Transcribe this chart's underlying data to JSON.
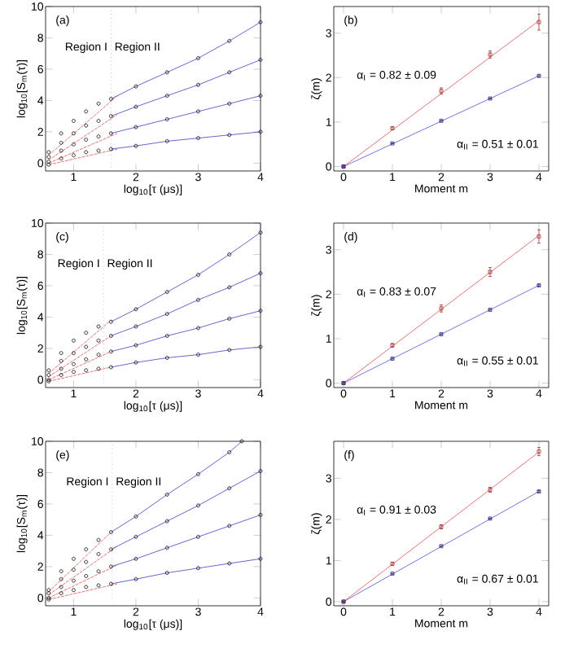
{
  "chart_data": [
    {
      "type": "scatter",
      "xlabel": "log$_{10}$[τ (μs)]",
      "ylabel": "log$_{10}$[S$_{m}$(τ)]",
      "xlim": [
        0.55,
        4
      ],
      "ylim": [
        -0.5,
        10
      ],
      "xticks": [
        1,
        2,
        3,
        4
      ],
      "yticks": [
        0,
        2,
        4,
        6,
        8,
        10
      ],
      "marker": "circle",
      "x": [
        0.6,
        0.8,
        1.0,
        1.2,
        1.4,
        1.6,
        2,
        2.5,
        3,
        3.5,
        4
      ],
      "ref_lines": [
        {
          "axis": "x",
          "value": 1.6,
          "color": "#999999",
          "line_style": "dotted"
        }
      ],
      "annotations": [
        "(a)",
        "Region I",
        "Region II"
      ],
      "series": [
        {
          "type": "line",
          "marker": "none",
          "line_style": "dashed",
          "color": "#e05050",
          "x": [
            0.6,
            1.7
          ],
          "values": [
            0.5,
            4.3
          ]
        },
        {
          "type": "line",
          "marker": "none",
          "line_style": "dashed",
          "color": "#e05050",
          "x": [
            0.6,
            1.7
          ],
          "values": [
            0.2,
            3.1
          ]
        },
        {
          "type": "line",
          "marker": "none",
          "line_style": "dashed",
          "color": "#e05050",
          "x": [
            0.6,
            1.7
          ],
          "values": [
            0.0,
            1.9
          ]
        },
        {
          "type": "line",
          "marker": "none",
          "line_style": "dashed",
          "color": "#e05050",
          "x": [
            0.6,
            1.7
          ],
          "values": [
            -0.1,
            0.9
          ]
        },
        {
          "color": "#000000",
          "values": [
            0.7,
            1.9,
            2.7,
            3.3,
            3.8,
            4.1,
            4.9,
            5.8,
            6.7,
            7.8,
            9.0
          ]
        },
        {
          "color": "#000000",
          "values": [
            0.4,
            1.3,
            1.9,
            2.4,
            2.7,
            3.0,
            3.6,
            4.3,
            5.0,
            5.8,
            6.6
          ]
        },
        {
          "color": "#000000",
          "values": [
            0.1,
            0.8,
            1.2,
            1.5,
            1.7,
            1.9,
            2.3,
            2.8,
            3.3,
            3.8,
            4.3
          ]
        },
        {
          "color": "#000000",
          "values": [
            -0.1,
            0.3,
            0.5,
            0.7,
            0.8,
            0.9,
            1.1,
            1.4,
            1.6,
            1.8,
            2.0
          ]
        },
        {
          "type": "line",
          "marker": "none",
          "color": "#4040c0",
          "x": [
            1.6,
            2,
            2.5,
            3,
            3.5,
            4
          ],
          "values": [
            4.1,
            4.9,
            5.8,
            6.7,
            7.8,
            9.0
          ]
        },
        {
          "type": "line",
          "marker": "none",
          "color": "#4040c0",
          "x": [
            1.6,
            2,
            2.5,
            3,
            3.5,
            4
          ],
          "values": [
            3.0,
            3.6,
            4.3,
            5.0,
            5.8,
            6.6
          ]
        },
        {
          "type": "line",
          "marker": "none",
          "color": "#4040c0",
          "x": [
            1.6,
            2,
            2.5,
            3,
            3.5,
            4
          ],
          "values": [
            1.9,
            2.3,
            2.8,
            3.3,
            3.8,
            4.3
          ]
        },
        {
          "type": "line",
          "marker": "none",
          "color": "#4040c0",
          "x": [
            1.6,
            2,
            2.5,
            3,
            3.5,
            4
          ],
          "values": [
            0.9,
            1.1,
            1.4,
            1.6,
            1.8,
            2.0
          ]
        }
      ]
    },
    {
      "type": "scatter",
      "xlabel": "Moment m",
      "ylabel": "ζ(m)",
      "xlim": [
        -0.2,
        4.2
      ],
      "ylim": [
        -0.1,
        3.6
      ],
      "xticks": [
        0,
        1,
        2,
        3,
        4
      ],
      "yticks": [
        0,
        1,
        2,
        3
      ],
      "marker": "square",
      "x": [
        0,
        1,
        2,
        3,
        4
      ],
      "annotations": [
        "(b)",
        "α$_{I}$ = 0.82 ± 0.09",
        "α$_{II}$ = 0.51 ± 0.01"
      ],
      "series": [
        {
          "type": "line",
          "marker": "none",
          "color": "#e05050",
          "x": [
            0,
            4
          ],
          "values": [
            0,
            3.28
          ]
        },
        {
          "type": "line",
          "marker": "none",
          "color": "#5050d0",
          "x": [
            0,
            4
          ],
          "values": [
            0,
            2.04
          ]
        },
        {
          "color": "#a03030",
          "values": [
            0,
            0.86,
            1.7,
            2.52,
            3.25
          ],
          "errors": [
            0.02,
            0.03,
            0.07,
            0.08,
            0.18
          ]
        },
        {
          "color": "#303080",
          "values": [
            0,
            0.52,
            1.03,
            1.53,
            2.04
          ],
          "errors": [
            0.01,
            0.01,
            0.01,
            0.01,
            0.02
          ]
        }
      ]
    },
    {
      "type": "scatter",
      "xlabel": "log$_{10}$[τ (μs)]",
      "ylabel": "log$_{10}$[S$_{m}$(τ)]",
      "xlim": [
        0.55,
        4
      ],
      "ylim": [
        -0.5,
        10
      ],
      "xticks": [
        1,
        2,
        3,
        4
      ],
      "yticks": [
        0,
        2,
        4,
        6,
        8,
        10
      ],
      "marker": "circle",
      "x": [
        0.6,
        0.8,
        1.0,
        1.2,
        1.4,
        1.6,
        2,
        2.5,
        3,
        3.5,
        4
      ],
      "ref_lines": [
        {
          "axis": "x",
          "value": 1.48,
          "color": "#999999",
          "line_style": "dotted"
        }
      ],
      "annotations": [
        "(c)",
        "Region I",
        "Region II"
      ],
      "series": [
        {
          "type": "line",
          "marker": "none",
          "line_style": "dashed",
          "color": "#e05050",
          "x": [
            0.6,
            1.6
          ],
          "values": [
            0.4,
            3.8
          ]
        },
        {
          "type": "line",
          "marker": "none",
          "line_style": "dashed",
          "color": "#e05050",
          "x": [
            0.6,
            1.6
          ],
          "values": [
            0.2,
            2.8
          ]
        },
        {
          "type": "line",
          "marker": "none",
          "line_style": "dashed",
          "color": "#e05050",
          "x": [
            0.6,
            1.6
          ],
          "values": [
            0.0,
            1.8
          ]
        },
        {
          "type": "line",
          "marker": "none",
          "line_style": "dashed",
          "color": "#e05050",
          "x": [
            0.6,
            1.6
          ],
          "values": [
            -0.1,
            0.8
          ]
        },
        {
          "color": "#000000",
          "values": [
            0.6,
            1.7,
            2.5,
            3.0,
            3.4,
            3.7,
            4.5,
            5.6,
            6.7,
            8.0,
            9.4
          ]
        },
        {
          "color": "#000000",
          "values": [
            0.3,
            1.2,
            1.7,
            2.1,
            2.5,
            2.8,
            3.4,
            4.2,
            5.1,
            5.9,
            6.8
          ]
        },
        {
          "color": "#000000",
          "values": [
            0.0,
            0.7,
            1.0,
            1.3,
            1.6,
            1.8,
            2.2,
            2.8,
            3.3,
            3.9,
            4.4
          ]
        },
        {
          "color": "#000000",
          "values": [
            -0.1,
            0.3,
            0.5,
            0.6,
            0.7,
            0.8,
            1.1,
            1.4,
            1.6,
            1.9,
            2.1
          ]
        },
        {
          "type": "line",
          "marker": "none",
          "color": "#4040c0",
          "x": [
            1.6,
            2,
            2.5,
            3,
            3.5,
            4
          ],
          "values": [
            3.7,
            4.5,
            5.6,
            6.7,
            8.0,
            9.4
          ]
        },
        {
          "type": "line",
          "marker": "none",
          "color": "#4040c0",
          "x": [
            1.6,
            2,
            2.5,
            3,
            3.5,
            4
          ],
          "values": [
            2.8,
            3.4,
            4.2,
            5.1,
            5.9,
            6.8
          ]
        },
        {
          "type": "line",
          "marker": "none",
          "color": "#4040c0",
          "x": [
            1.6,
            2,
            2.5,
            3,
            3.5,
            4
          ],
          "values": [
            1.8,
            2.2,
            2.8,
            3.3,
            3.9,
            4.4
          ]
        },
        {
          "type": "line",
          "marker": "none",
          "color": "#4040c0",
          "x": [
            1.6,
            2,
            2.5,
            3,
            3.5,
            4
          ],
          "values": [
            0.8,
            1.1,
            1.4,
            1.6,
            1.9,
            2.1
          ]
        }
      ]
    },
    {
      "type": "scatter",
      "xlabel": "Moment m",
      "ylabel": "ζ(m)",
      "xlim": [
        -0.2,
        4.2
      ],
      "ylim": [
        -0.1,
        3.6
      ],
      "xticks": [
        0,
        1,
        2,
        3,
        4
      ],
      "yticks": [
        0,
        1,
        2,
        3
      ],
      "marker": "square",
      "x": [
        0,
        1,
        2,
        3,
        4
      ],
      "annotations": [
        "(d)",
        "α$_{I}$ = 0.83 ± 0.07",
        "α$_{II}$ = 0.55 ± 0.01"
      ],
      "series": [
        {
          "type": "line",
          "marker": "none",
          "color": "#e05050",
          "x": [
            0,
            4
          ],
          "values": [
            0,
            3.32
          ]
        },
        {
          "type": "line",
          "marker": "none",
          "color": "#5050d0",
          "x": [
            0,
            4
          ],
          "values": [
            0,
            2.2
          ]
        },
        {
          "color": "#a03030",
          "values": [
            0,
            0.85,
            1.68,
            2.5,
            3.3
          ],
          "errors": [
            0.03,
            0.04,
            0.08,
            0.1,
            0.15
          ]
        },
        {
          "color": "#303080",
          "values": [
            0,
            0.55,
            1.1,
            1.65,
            2.2
          ],
          "errors": [
            0.01,
            0.01,
            0.01,
            0.01,
            0.02
          ]
        }
      ]
    },
    {
      "type": "scatter",
      "xlabel": "log$_{10}$[τ (μs)]",
      "ylabel": "log$_{10}$[S$_{m}$(τ)]",
      "xlim": [
        0.55,
        4
      ],
      "ylim": [
        -0.5,
        10
      ],
      "xticks": [
        1,
        2,
        3,
        4
      ],
      "yticks": [
        0,
        2,
        4,
        6,
        8,
        10
      ],
      "marker": "circle",
      "x": [
        0.6,
        0.8,
        1.0,
        1.2,
        1.4,
        1.6,
        2,
        2.5,
        3,
        3.5,
        4
      ],
      "ref_lines": [
        {
          "axis": "x",
          "value": 1.62,
          "color": "#999999",
          "line_style": "dotted"
        }
      ],
      "annotations": [
        "(e)",
        "Region I",
        "Region II"
      ],
      "series": [
        {
          "type": "line",
          "marker": "none",
          "line_style": "dashed",
          "color": "#e05050",
          "x": [
            0.6,
            1.6
          ],
          "values": [
            0.4,
            4.2
          ]
        },
        {
          "type": "line",
          "marker": "none",
          "line_style": "dashed",
          "color": "#e05050",
          "x": [
            0.6,
            1.7
          ],
          "values": [
            0.2,
            3.3
          ]
        },
        {
          "type": "line",
          "marker": "none",
          "line_style": "dashed",
          "color": "#e05050",
          "x": [
            0.6,
            1.7
          ],
          "values": [
            0.0,
            2.1
          ]
        },
        {
          "type": "line",
          "marker": "none",
          "line_style": "dashed",
          "color": "#e05050",
          "x": [
            0.6,
            1.7
          ],
          "values": [
            -0.1,
            0.9
          ]
        },
        {
          "color": "#000000",
          "x": [
            0.6,
            0.8,
            1.0,
            1.2,
            1.4,
            1.6,
            2,
            2.5,
            3,
            3.5,
            3.7
          ],
          "values": [
            0.5,
            1.7,
            2.5,
            3.1,
            3.7,
            4.2,
            5.2,
            6.6,
            7.9,
            9.3,
            10.0
          ]
        },
        {
          "color": "#000000",
          "values": [
            0.3,
            1.2,
            1.8,
            2.3,
            2.8,
            3.1,
            3.9,
            4.9,
            5.9,
            7.0,
            8.1
          ]
        },
        {
          "color": "#000000",
          "values": [
            0.0,
            0.7,
            1.1,
            1.4,
            1.7,
            2.0,
            2.5,
            3.2,
            3.9,
            4.6,
            5.3
          ]
        },
        {
          "color": "#000000",
          "values": [
            -0.1,
            0.3,
            0.5,
            0.7,
            0.8,
            0.9,
            1.2,
            1.6,
            1.9,
            2.2,
            2.5
          ]
        },
        {
          "type": "line",
          "marker": "none",
          "color": "#4040c0",
          "x": [
            1.6,
            2,
            2.5,
            3,
            3.5,
            3.7
          ],
          "values": [
            4.2,
            5.2,
            6.6,
            7.9,
            9.3,
            10.0
          ]
        },
        {
          "type": "line",
          "marker": "none",
          "color": "#4040c0",
          "x": [
            1.6,
            2,
            2.5,
            3,
            3.5,
            4
          ],
          "values": [
            3.1,
            3.9,
            4.9,
            5.9,
            7.0,
            8.1
          ]
        },
        {
          "type": "line",
          "marker": "none",
          "color": "#4040c0",
          "x": [
            1.6,
            2,
            2.5,
            3,
            3.5,
            4
          ],
          "values": [
            2.0,
            2.5,
            3.2,
            3.9,
            4.6,
            5.3
          ]
        },
        {
          "type": "line",
          "marker": "none",
          "color": "#4040c0",
          "x": [
            1.6,
            2,
            2.5,
            3,
            3.5,
            4
          ],
          "values": [
            0.9,
            1.2,
            1.6,
            1.9,
            2.2,
            2.5
          ]
        }
      ]
    },
    {
      "type": "scatter",
      "xlabel": "Moment m",
      "ylabel": "ζ(m)",
      "xlim": [
        -0.2,
        4.2
      ],
      "ylim": [
        -0.1,
        3.9
      ],
      "xticks": [
        0,
        1,
        2,
        3,
        4
      ],
      "yticks": [
        0,
        1,
        2,
        3
      ],
      "marker": "square",
      "x": [
        0,
        1,
        2,
        3,
        4
      ],
      "annotations": [
        "(f)",
        "α$_{I}$ = 0.91 ± 0.03",
        "α$_{II}$ = 0.67 ± 0.01"
      ],
      "series": [
        {
          "type": "line",
          "marker": "none",
          "color": "#e05050",
          "x": [
            0,
            4
          ],
          "values": [
            0,
            3.64
          ]
        },
        {
          "type": "line",
          "marker": "none",
          "color": "#5050d0",
          "x": [
            0,
            4
          ],
          "values": [
            0,
            2.68
          ]
        },
        {
          "color": "#a03030",
          "values": [
            0,
            0.92,
            1.82,
            2.72,
            3.65
          ],
          "errors": [
            0.02,
            0.04,
            0.05,
            0.06,
            0.1
          ]
        },
        {
          "color": "#303080",
          "values": [
            0,
            0.68,
            1.35,
            2.02,
            2.68
          ],
          "errors": [
            0.01,
            0.01,
            0.01,
            0.01,
            0.02
          ]
        }
      ]
    }
  ]
}
